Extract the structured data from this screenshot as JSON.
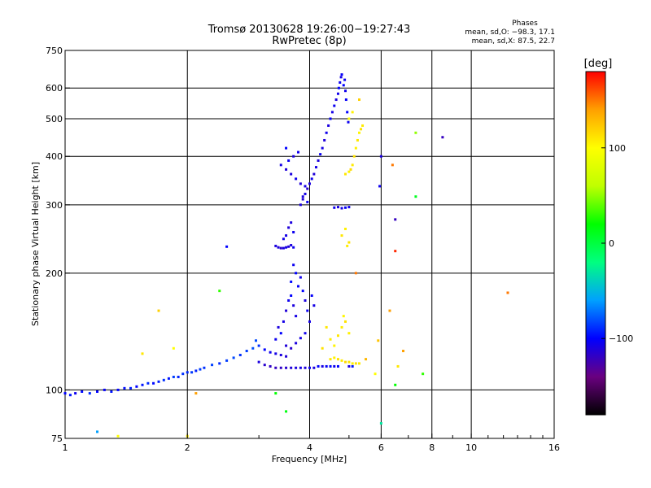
{
  "chart_data": {
    "type": "scatter",
    "title": "Tromsø 20130628 19:26:00−19:27:43",
    "subtitle": "RwPretec (8p)",
    "xlabel": "Frequency [MHz]",
    "ylabel": "Stationary phase Virtual Height [km]",
    "x_scale": "log",
    "y_scale": "log",
    "xlim": [
      1,
      16
    ],
    "ylim": [
      75,
      750
    ],
    "x_ticks": [
      1,
      2,
      4,
      6,
      8,
      10,
      16
    ],
    "x_tick_labels": [
      "1",
      "2",
      "4",
      "6",
      "8",
      "10",
      "16"
    ],
    "y_ticks": [
      75,
      100,
      200,
      300,
      400,
      500,
      600,
      750
    ],
    "y_tick_labels": [
      "75",
      "100",
      "200",
      "300",
      "400",
      "500",
      "600",
      "750"
    ],
    "grid": true,
    "phases_box": {
      "title": "Phases",
      "line_o": "mean, sd,O: −98.3, 17.1",
      "line_x": "mean, sd,X:  87.5, 22.7"
    },
    "colorbar": {
      "unit_label": "[deg]",
      "range": [
        -180,
        180
      ],
      "tick_values": [
        100,
        0,
        -100
      ],
      "tick_labels": [
        "100",
        "0",
        "−100"
      ],
      "colors": [
        "#000000",
        "#6a0080",
        "#0000ff",
        "#00a0ff",
        "#00ff80",
        "#00ff00",
        "#c0ff00",
        "#ffff00",
        "#ffa000",
        "#ff0000"
      ]
    },
    "series": [
      {
        "values": [
          [
            1.0,
            98,
            -100
          ],
          [
            1.03,
            97,
            -95
          ],
          [
            1.06,
            98,
            -105
          ],
          [
            1.1,
            99,
            -98
          ],
          [
            1.15,
            98,
            -90
          ],
          [
            1.2,
            99,
            -100
          ],
          [
            1.25,
            100,
            -102
          ],
          [
            1.3,
            99,
            -95
          ],
          [
            1.35,
            100,
            -100
          ],
          [
            1.4,
            101,
            -97
          ],
          [
            1.45,
            101,
            -92
          ],
          [
            1.5,
            102,
            -100
          ],
          [
            1.55,
            103,
            -95
          ],
          [
            1.6,
            104,
            -90
          ],
          [
            1.65,
            104,
            -98
          ],
          [
            1.7,
            105,
            -93
          ],
          [
            1.75,
            106,
            -88
          ],
          [
            1.8,
            107,
            -95
          ],
          [
            1.85,
            108,
            -85
          ],
          [
            1.9,
            108,
            -92
          ],
          [
            1.95,
            110,
            -88
          ],
          [
            2.0,
            111,
            -90
          ],
          [
            2.05,
            111,
            -86
          ],
          [
            2.1,
            112,
            -92
          ],
          [
            2.15,
            113,
            -85
          ],
          [
            2.2,
            114,
            -88
          ],
          [
            2.3,
            116,
            -84
          ],
          [
            2.4,
            117,
            -90
          ],
          [
            2.5,
            119,
            -85
          ],
          [
            2.6,
            121,
            -82
          ],
          [
            2.7,
            123,
            -88
          ],
          [
            2.8,
            126,
            -85
          ],
          [
            2.9,
            128,
            -80
          ],
          [
            3.0,
            130,
            -88
          ],
          [
            2.95,
            134,
            -82
          ],
          [
            3.1,
            127,
            -100
          ],
          [
            3.2,
            125,
            -105
          ],
          [
            3.3,
            124,
            -108
          ],
          [
            3.4,
            123,
            -110
          ],
          [
            3.5,
            122,
            -112
          ]
        ]
      },
      {
        "values": [
          [
            3.0,
            118,
            -110
          ],
          [
            3.1,
            116,
            -115
          ],
          [
            3.2,
            115,
            -118
          ],
          [
            3.3,
            114,
            -120
          ],
          [
            3.4,
            114,
            -118
          ],
          [
            3.5,
            114,
            -115
          ],
          [
            3.6,
            114,
            -112
          ],
          [
            3.7,
            114,
            -110
          ],
          [
            3.8,
            114,
            -108
          ],
          [
            3.9,
            114,
            -112
          ],
          [
            4.0,
            114,
            -105
          ],
          [
            4.1,
            114,
            -110
          ],
          [
            4.2,
            115,
            -100
          ],
          [
            4.3,
            115,
            -108
          ],
          [
            4.4,
            115,
            -102
          ],
          [
            4.5,
            115,
            -98
          ],
          [
            4.6,
            115,
            -105
          ],
          [
            4.7,
            115,
            -100
          ],
          [
            5.0,
            115,
            -110
          ],
          [
            5.1,
            115,
            -95
          ]
        ]
      },
      {
        "values": [
          [
            3.3,
            135,
            -105
          ],
          [
            3.35,
            145,
            -110
          ],
          [
            3.4,
            140,
            -100
          ],
          [
            3.45,
            150,
            -108
          ],
          [
            3.5,
            160,
            -112
          ],
          [
            3.55,
            170,
            -105
          ],
          [
            3.6,
            175,
            -100
          ],
          [
            3.65,
            165,
            -110
          ],
          [
            3.7,
            155,
            -108
          ],
          [
            3.75,
            185,
            -102
          ],
          [
            3.8,
            195,
            -106
          ],
          [
            3.85,
            180,
            -100
          ],
          [
            3.9,
            170,
            -110
          ],
          [
            3.95,
            160,
            -104
          ],
          [
            4.0,
            150,
            -108
          ],
          [
            3.5,
            130,
            -112
          ],
          [
            3.6,
            128,
            -115
          ],
          [
            3.7,
            132,
            -110
          ],
          [
            3.8,
            136,
            -108
          ],
          [
            3.9,
            140,
            -106
          ],
          [
            3.6,
            190,
            -98
          ],
          [
            3.7,
            200,
            -100
          ],
          [
            3.65,
            210,
            -104
          ],
          [
            4.05,
            175,
            -102
          ],
          [
            4.1,
            165,
            -108
          ]
        ]
      },
      {
        "values": [
          [
            3.3,
            235,
            -110
          ],
          [
            3.35,
            233,
            -112
          ],
          [
            3.4,
            232,
            -115
          ],
          [
            3.45,
            232,
            -110
          ],
          [
            3.5,
            233,
            -108
          ],
          [
            3.55,
            234,
            -112
          ],
          [
            3.6,
            236,
            -110
          ],
          [
            3.65,
            233,
            -105
          ],
          [
            3.5,
            250,
            -108
          ],
          [
            3.55,
            262,
            -112
          ],
          [
            3.6,
            270,
            -110
          ],
          [
            3.65,
            255,
            -105
          ],
          [
            3.45,
            245,
            -108
          ]
        ]
      },
      {
        "values": [
          [
            3.8,
            300,
            -110
          ],
          [
            3.85,
            310,
            -112
          ],
          [
            3.9,
            320,
            -108
          ],
          [
            3.95,
            330,
            -115
          ],
          [
            4.0,
            340,
            -110
          ],
          [
            4.05,
            350,
            -106
          ],
          [
            4.1,
            360,
            -112
          ],
          [
            4.15,
            375,
            -108
          ],
          [
            4.2,
            390,
            -110
          ],
          [
            4.25,
            405,
            -104
          ],
          [
            4.3,
            420,
            -108
          ],
          [
            4.35,
            440,
            -112
          ],
          [
            4.4,
            460,
            -106
          ],
          [
            4.45,
            480,
            -110
          ],
          [
            4.5,
            500,
            -102
          ],
          [
            4.55,
            520,
            -108
          ],
          [
            4.6,
            540,
            -104
          ],
          [
            4.65,
            560,
            -110
          ],
          [
            4.7,
            580,
            -106
          ],
          [
            4.72,
            600,
            -100
          ],
          [
            4.75,
            620,
            -104
          ],
          [
            4.78,
            640,
            -108
          ],
          [
            4.8,
            650,
            -102
          ],
          [
            4.85,
            610,
            -100
          ],
          [
            4.88,
            630,
            -104
          ],
          [
            4.9,
            590,
            -106
          ],
          [
            4.92,
            560,
            -102
          ],
          [
            4.95,
            520,
            -100
          ],
          [
            4.98,
            490,
            -104
          ]
        ]
      },
      {
        "values": [
          [
            3.4,
            380,
            -108
          ],
          [
            3.5,
            370,
            -112
          ],
          [
            3.6,
            360,
            -110
          ],
          [
            3.7,
            350,
            -106
          ],
          [
            3.8,
            340,
            -112
          ],
          [
            3.9,
            335,
            -108
          ],
          [
            3.55,
            390,
            -104
          ],
          [
            3.65,
            400,
            -110
          ],
          [
            3.75,
            410,
            -106
          ],
          [
            3.5,
            420,
            -100
          ],
          [
            3.85,
            315,
            -110
          ],
          [
            3.95,
            305,
            -104
          ]
        ]
      },
      {
        "values": [
          [
            4.6,
            295,
            -105
          ],
          [
            4.7,
            296,
            -110
          ],
          [
            4.8,
            294,
            -108
          ],
          [
            4.9,
            295,
            -102
          ],
          [
            5.0,
            296,
            -106
          ]
        ]
      },
      {
        "values": [
          [
            4.9,
            360,
            110
          ],
          [
            5.0,
            365,
            105
          ],
          [
            5.05,
            370,
            115
          ],
          [
            5.1,
            380,
            108
          ],
          [
            5.15,
            400,
            112
          ],
          [
            5.2,
            420,
            106
          ],
          [
            5.25,
            440,
            110
          ],
          [
            5.3,
            460,
            104
          ],
          [
            5.35,
            470,
            112
          ],
          [
            5.4,
            480,
            108
          ],
          [
            5.0,
            500,
            100
          ],
          [
            5.1,
            520,
            106
          ],
          [
            5.3,
            560,
            120
          ],
          [
            4.5,
            120,
            110
          ],
          [
            4.6,
            121,
            105
          ],
          [
            4.7,
            120,
            112
          ],
          [
            4.8,
            119,
            108
          ],
          [
            4.9,
            118,
            115
          ],
          [
            5.0,
            118,
            110
          ],
          [
            5.1,
            117,
            106
          ],
          [
            5.2,
            117,
            112
          ],
          [
            5.3,
            117,
            108
          ],
          [
            4.6,
            130,
            105
          ],
          [
            4.7,
            138,
            110
          ],
          [
            4.8,
            145,
            108
          ],
          [
            4.9,
            150,
            112
          ],
          [
            5.0,
            140,
            106
          ],
          [
            4.8,
            250,
            110
          ],
          [
            4.9,
            260,
            106
          ],
          [
            5.0,
            240,
            112
          ],
          [
            4.95,
            235,
            108
          ],
          [
            4.4,
            145,
            110
          ],
          [
            4.5,
            135,
            108
          ],
          [
            4.3,
            128,
            112
          ],
          [
            4.85,
            155,
            104
          ]
        ]
      },
      {
        "values": [
          [
            1.2,
            78,
            -60
          ],
          [
            1.35,
            76,
            100
          ],
          [
            1.55,
            124,
            110
          ],
          [
            1.7,
            160,
            120
          ],
          [
            1.85,
            128,
            100
          ],
          [
            2.0,
            76,
            108
          ],
          [
            2.1,
            98,
            140
          ],
          [
            2.5,
            234,
            -100
          ],
          [
            2.4,
            180,
            30
          ],
          [
            3.3,
            98,
            20
          ],
          [
            3.5,
            88,
            15
          ],
          [
            5.2,
            200,
            150
          ],
          [
            5.5,
            120,
            130
          ],
          [
            5.8,
            110,
            100
          ],
          [
            5.9,
            134,
            125
          ],
          [
            6.0,
            400,
            -110
          ],
          [
            5.95,
            335,
            -105
          ],
          [
            6.0,
            82,
            -30
          ],
          [
            6.3,
            160,
            140
          ],
          [
            6.4,
            380,
            150
          ],
          [
            6.5,
            275,
            -120
          ],
          [
            6.5,
            228,
            170
          ],
          [
            6.6,
            115,
            110
          ],
          [
            6.8,
            126,
            140
          ],
          [
            7.3,
            315,
            10
          ],
          [
            7.3,
            460,
            50
          ],
          [
            7.6,
            110,
            30
          ],
          [
            8.5,
            448,
            -120
          ],
          [
            12.3,
            178,
            150
          ],
          [
            6.5,
            103,
            20
          ]
        ]
      }
    ]
  }
}
